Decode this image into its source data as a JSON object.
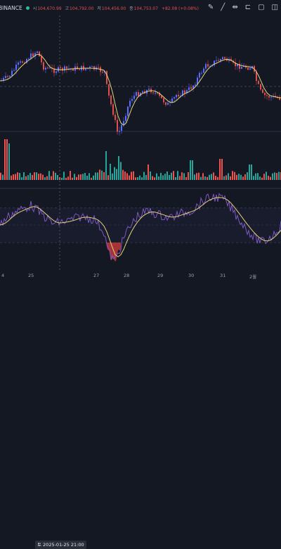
{
  "header": {
    "exchange": "BINANCE",
    "ohlc": [
      {
        "k": "시",
        "v": "104,670.99"
      },
      {
        "k": "고",
        "v": "104,792.00"
      },
      {
        "k": "저",
        "v": "104,456.00"
      },
      {
        "k": "종",
        "v": "104,753.07"
      },
      {
        "k": "",
        "v": "+82.08 (+0.08%)"
      }
    ]
  },
  "toolbar": {
    "icons": [
      "draw-icon",
      "line-tool-icon",
      "horizontal-line-icon",
      "measure-icon",
      "zoom-icon",
      "more-icon"
    ],
    "glyphs": [
      "✎",
      "╱",
      "⇹",
      "⊏",
      "▢",
      "◫"
    ]
  },
  "xaxis": {
    "labels": [
      "4",
      "25",
      "27",
      "28",
      "29",
      "30",
      "31",
      "2월"
    ],
    "crosshair_label": "토 2025-01-25  21:00"
  },
  "colors": {
    "background": "#141823",
    "up": "#26a69a",
    "down": "#ef5350",
    "candle_up": "#5b6cff",
    "candle_down": "#e05050",
    "ma": "#e3d27a",
    "oscillator": "#7e57c2",
    "hover_fill": "#c03a3a"
  }
}
